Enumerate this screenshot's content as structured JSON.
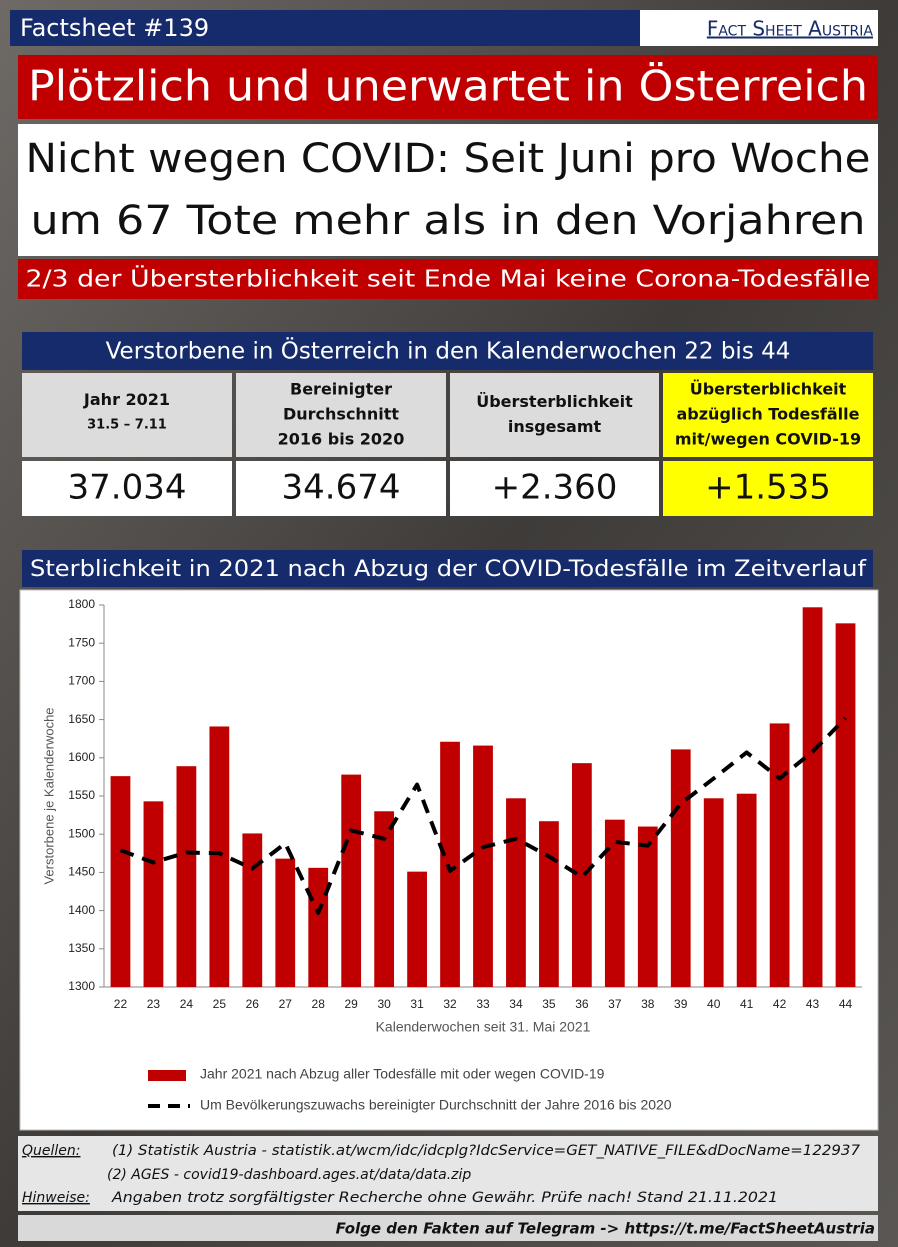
{
  "header": {
    "label": "Factsheet #139",
    "brand": "Fact Sheet Austria",
    "headline": "Plötzlich und unerwartet in Österreich",
    "subheadline": [
      "Nicht wegen COVID: Seit Juni pro Woche",
      "um 67 Tote mehr als in den Vorjahren"
    ],
    "tagline": "2/3 der Übersterblichkeit seit Ende Mai keine Corona-Todesfälle"
  },
  "table": {
    "title": "Verstorbene in Österreich in den Kalenderwochen 22 bis 44",
    "headers": [
      [
        "Jahr 2021",
        "31.5 – 7.11"
      ],
      [
        "Bereinigter",
        "Durchschnitt",
        "2016 bis 2020"
      ],
      [
        "Übersterblichkeit",
        "insgesamt"
      ],
      [
        "Übersterblichkeit",
        "abzüglich Todesfälle",
        "mit/wegen COVID-19"
      ]
    ],
    "values": [
      "37.034",
      "34.674",
      "+2.360",
      "+1.535"
    ]
  },
  "chart_data": {
    "type": "bar",
    "title": "Sterblichkeit in 2021 nach Abzug der COVID-Todesfälle im Zeitverlauf",
    "x_label": "Kalenderwochen seit 31. Mai 2021",
    "y_label": "Verstorbene je  Kalenderwoche",
    "categories": [
      "22",
      "23",
      "24",
      "25",
      "26",
      "27",
      "28",
      "29",
      "30",
      "31",
      "32",
      "33",
      "34",
      "35",
      "36",
      "37",
      "38",
      "39",
      "40",
      "41",
      "42",
      "43",
      "44"
    ],
    "series": [
      {
        "name": "Jahr 2021 nach Abzug aller Todesfälle mit oder wegen COVID-19",
        "color": "#c00000",
        "type": "bar",
        "values": [
          1576,
          1543,
          1589,
          1641,
          1501,
          1468,
          1456,
          1578,
          1530,
          1451,
          1621,
          1616,
          1547,
          1517,
          1593,
          1519,
          1510,
          1611,
          1547,
          1553,
          1645,
          1797,
          1776
        ]
      },
      {
        "name": "Um Bevölkerungszuwachs bereinigter Durchschnitt der Jahre 2016 bis 2020",
        "color": "#000000",
        "type": "line",
        "dashed": true,
        "values": [
          1479,
          1463,
          1476,
          1475,
          1455,
          1488,
          1397,
          1505,
          1494,
          1565,
          1452,
          1483,
          1494,
          1471,
          1444,
          1490,
          1485,
          1540,
          1573,
          1607,
          1573,
          1608,
          1652
        ]
      }
    ],
    "ylim": [
      1300,
      1800
    ],
    "yticks": [
      1300,
      1350,
      1400,
      1450,
      1500,
      1550,
      1600,
      1650,
      1700,
      1750,
      1800
    ],
    "grid": false
  },
  "footer": {
    "sources_label": "Quellen:",
    "sources": [
      "(1) Statistik Austria - statistik.at/wcm/idc/idcplg?IdcService=GET_NATIVE_FILE&dDocName=122937",
      "(2) AGES - covid19-dashboard.ages.at/data/data.zip"
    ],
    "notes_label": "Hinweise:",
    "notes": "Angaben trotz sorgfältigster Recherche ohne Gewähr. Prüfe nach! Stand 21.11.2021",
    "telegram": "Folge den Fakten auf Telegram  ->  https://t.me/FactSheetAustria"
  }
}
